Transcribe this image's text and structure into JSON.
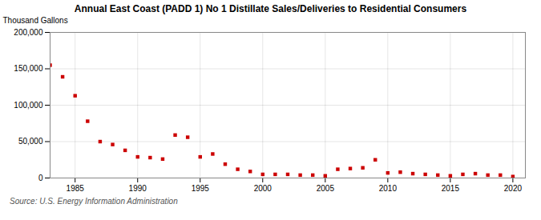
{
  "chart_data": {
    "type": "scatter",
    "title": "Annual East Coast (PADD 1) No 1 Distillate Sales/Deliveries to Residential Consumers",
    "ylabel": "Thousand Gallons",
    "source": "Source: U.S. Energy Information Administration",
    "color": "#cc0000",
    "marker": "square",
    "grid": true,
    "xlim": [
      1983,
      2021
    ],
    "xticks": [
      1985,
      1990,
      1995,
      2000,
      2005,
      2010,
      2015,
      2020
    ],
    "ylim": [
      0,
      200000
    ],
    "yticks": [
      0,
      {
        "value": 50000,
        "label": "50,000"
      },
      {
        "value": 100000,
        "label": "100,000"
      },
      {
        "value": 150000,
        "label": "150,000"
      },
      {
        "value": 200000,
        "label": "200,000"
      }
    ],
    "x": [
      1983,
      1984,
      1985,
      1986,
      1987,
      1988,
      1989,
      1990,
      1991,
      1992,
      1993,
      1994,
      1995,
      1996,
      1997,
      1998,
      1999,
      2000,
      2001,
      2002,
      2003,
      2004,
      2005,
      2006,
      2007,
      2008,
      2009,
      2010,
      2011,
      2012,
      2013,
      2014,
      2015,
      2016,
      2017,
      2018,
      2019,
      2020
    ],
    "values": [
      155000,
      139000,
      113000,
      78000,
      50000,
      46000,
      38000,
      29000,
      28000,
      26000,
      59000,
      56000,
      29000,
      33000,
      19000,
      12000,
      9000,
      5000,
      5000,
      5000,
      4000,
      4000,
      3000,
      12000,
      13000,
      14000,
      25000,
      7000,
      8000,
      6000,
      5000,
      4000,
      3000,
      5000,
      6000,
      4000,
      4000,
      2000
    ]
  }
}
